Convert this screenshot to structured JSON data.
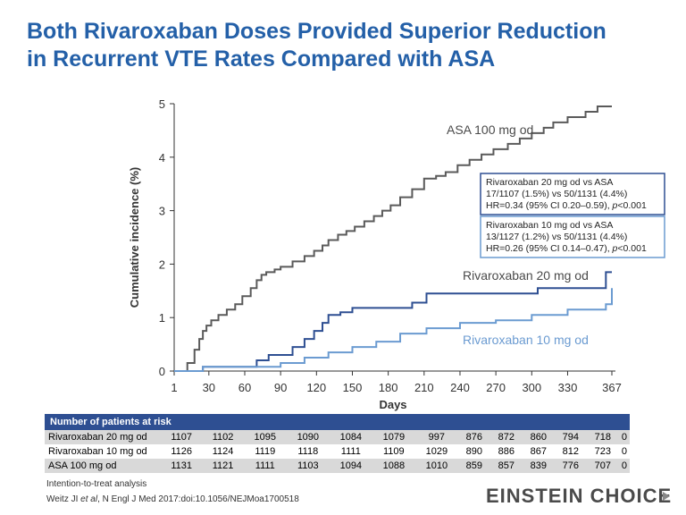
{
  "title": {
    "line1": "Both Rivaroxaban Doses Provided Superior Reduction",
    "line2": "in Recurrent VTE Rates Compared with ASA"
  },
  "chart_data": {
    "type": "line",
    "xlabel": "Days",
    "ylabel": "Cumulative incidence (%)",
    "xlim": [
      1,
      367
    ],
    "ylim": [
      0,
      5
    ],
    "xticks": [
      1,
      30,
      60,
      90,
      120,
      150,
      180,
      210,
      240,
      270,
      300,
      330,
      367
    ],
    "yticks": [
      0,
      1,
      2,
      3,
      4,
      5
    ],
    "series": [
      {
        "name": "ASA 100 mg od",
        "color": "#5a5a5a",
        "x": [
          1,
          12,
          18,
          22,
          25,
          28,
          32,
          38,
          45,
          52,
          58,
          65,
          70,
          74,
          78,
          85,
          90,
          100,
          110,
          118,
          125,
          130,
          138,
          145,
          152,
          160,
          168,
          175,
          182,
          190,
          200,
          210,
          220,
          228,
          238,
          248,
          258,
          268,
          280,
          290,
          300,
          310,
          318,
          330,
          345,
          355,
          367
        ],
        "y": [
          0,
          0.15,
          0.4,
          0.6,
          0.75,
          0.85,
          0.95,
          1.05,
          1.15,
          1.25,
          1.4,
          1.55,
          1.7,
          1.8,
          1.85,
          1.9,
          1.95,
          2.05,
          2.15,
          2.25,
          2.35,
          2.45,
          2.55,
          2.62,
          2.7,
          2.8,
          2.9,
          3.0,
          3.1,
          3.25,
          3.4,
          3.6,
          3.65,
          3.72,
          3.85,
          3.95,
          4.05,
          4.15,
          4.25,
          4.35,
          4.45,
          4.55,
          4.65,
          4.75,
          4.85,
          4.95,
          4.95
        ]
      },
      {
        "name": "Rivaroxaban 20 mg od",
        "color": "#2e4f92",
        "x": [
          1,
          25,
          62,
          70,
          80,
          100,
          110,
          118,
          125,
          130,
          140,
          150,
          165,
          200,
          212,
          240,
          270,
          305,
          325,
          362,
          367
        ],
        "y": [
          0,
          0.08,
          0.08,
          0.2,
          0.3,
          0.45,
          0.6,
          0.75,
          0.9,
          1.05,
          1.1,
          1.18,
          1.18,
          1.28,
          1.45,
          1.45,
          1.45,
          1.55,
          1.55,
          1.85,
          1.85
        ]
      },
      {
        "name": "Rivaroxaban 10 mg od",
        "color": "#6b9bd1",
        "x": [
          1,
          25,
          70,
          90,
          110,
          130,
          150,
          170,
          190,
          212,
          240,
          270,
          300,
          330,
          362,
          367
        ],
        "y": [
          0,
          0.08,
          0.08,
          0.15,
          0.25,
          0.35,
          0.45,
          0.55,
          0.7,
          0.8,
          0.9,
          0.95,
          1.05,
          1.15,
          1.25,
          1.55
        ]
      }
    ],
    "annotations": [
      "ASA 100 mg od",
      "Rivaroxaban 20 mg od",
      "Rivaroxaban 10 mg od"
    ],
    "stat_boxes": [
      {
        "lines": [
          "Rivaroxaban 20 mg od vs ASA",
          "17/1107 (1.5%) vs 50/1131 (4.4%)"
        ],
        "hr_text": "HR=0.34 (95% CI 0.20–0.59), ",
        "p_label": "p",
        "p_value": "<0.001"
      },
      {
        "lines": [
          "Rivaroxaban 10 mg od vs ASA",
          "13/1127 (1.2%) vs 50/1131 (4.4%)"
        ],
        "hr_text": "HR=0.26 (95% CI 0.14–0.47), ",
        "p_label": "p",
        "p_value": "<0.001"
      }
    ]
  },
  "risk_table": {
    "header": "Number of patients at risk",
    "rows": [
      {
        "label": "Rivaroxaban 20 mg od",
        "values": [
          "1107",
          "1102",
          "1095",
          "1090",
          "1084",
          "1079",
          "997",
          "876",
          "872",
          "860",
          "794",
          "718",
          "0"
        ]
      },
      {
        "label": "Rivaroxaban 10 mg od",
        "values": [
          "1126",
          "1124",
          "1119",
          "1118",
          "1111",
          "1109",
          "1029",
          "890",
          "886",
          "867",
          "812",
          "723",
          "0"
        ]
      },
      {
        "label": "ASA 100 mg od",
        "values": [
          "1131",
          "1121",
          "1111",
          "1103",
          "1094",
          "1088",
          "1010",
          "859",
          "857",
          "839",
          "776",
          "707",
          "0"
        ]
      }
    ]
  },
  "footer": {
    "note": "Intention-to-treat analysis",
    "citation_authors": "Weitz JI ",
    "citation_etal": "et al",
    "citation_journal": ", N Engl J Med",
    "citation_doi": " 2017:doi:10.1056/NEJMoa1700518",
    "logo_text": "einstein choice"
  },
  "colors": {
    "title": "#2460a8",
    "asa": "#5a5a5a",
    "riva20": "#2e4f92",
    "riva10": "#6b9bd1",
    "table_header": "#2e4f92",
    "row_shade": "#d9d9d9"
  }
}
